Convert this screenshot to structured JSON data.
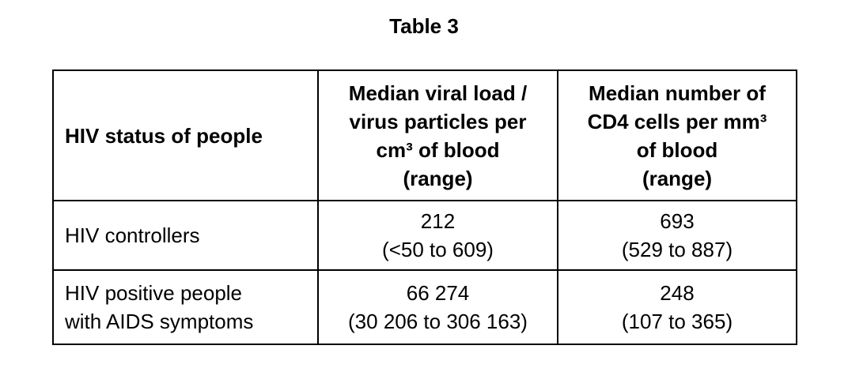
{
  "title": "Table 3",
  "table": {
    "header": [
      [
        "HIV status of people"
      ],
      [
        "Median viral load /",
        "virus particles per",
        "cm³ of blood",
        "(range)"
      ],
      [
        "Median number of",
        "CD4 cells per mm³",
        "of blood",
        "(range)"
      ]
    ],
    "rows": [
      [
        [
          "HIV controllers"
        ],
        [
          "212",
          "(<50 to 609)"
        ],
        [
          "693",
          "(529 to 887)"
        ]
      ],
      [
        [
          "HIV positive people",
          "with AIDS symptoms"
        ],
        [
          "66 274",
          "(30 206 to 306 163)"
        ],
        [
          "248",
          "(107 to 365)"
        ]
      ]
    ]
  }
}
